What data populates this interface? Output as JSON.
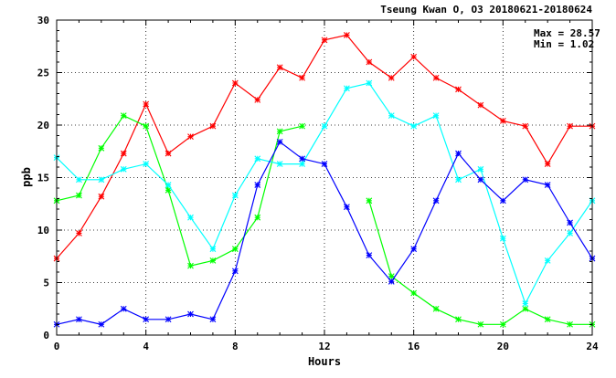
{
  "chart_data": {
    "type": "line",
    "title": "Tseung Kwan O, O3 20180621-20180624",
    "xlabel": "Hours",
    "ylabel": "ppb",
    "xlim": [
      0,
      24
    ],
    "ylim": [
      0,
      30
    ],
    "xticks": [
      0,
      4,
      8,
      12,
      16,
      20,
      24
    ],
    "yticks": [
      0,
      5,
      10,
      15,
      20,
      25,
      30
    ],
    "grid": true,
    "stats": {
      "max_label": "Max = 28.57",
      "min_label": "Min = 1.02"
    },
    "x": [
      0,
      1,
      2,
      3,
      4,
      5,
      6,
      7,
      8,
      9,
      10,
      11,
      12,
      13,
      14,
      15,
      16,
      17,
      18,
      19,
      20,
      21,
      22,
      23,
      24
    ],
    "series": [
      {
        "color": "#ff0000",
        "values": [
          7.3,
          9.7,
          13.2,
          17.3,
          22.0,
          17.3,
          18.9,
          19.9,
          24.0,
          22.4,
          25.5,
          24.5,
          28.1,
          28.57,
          26.0,
          24.5,
          26.5,
          24.5,
          23.4,
          21.9,
          20.4,
          19.9,
          16.3,
          19.9,
          19.9
        ]
      },
      {
        "color": "#00ff00",
        "values": [
          12.8,
          13.3,
          17.8,
          20.9,
          19.9,
          13.8,
          6.6,
          7.1,
          8.2,
          11.2,
          19.4,
          19.9,
          null,
          null,
          12.8,
          5.6,
          4.0,
          2.5,
          1.5,
          1.02,
          1.02,
          2.5,
          1.5,
          1.02,
          1.02
        ]
      },
      {
        "color": "#00ffff",
        "values": [
          16.9,
          14.8,
          14.8,
          15.8,
          16.3,
          14.3,
          11.2,
          8.2,
          13.3,
          16.8,
          16.3,
          16.3,
          19.9,
          23.5,
          24.0,
          20.9,
          19.9,
          20.9,
          14.8,
          15.8,
          9.2,
          3.0,
          7.1,
          9.7,
          12.8
        ]
      },
      {
        "color": "#0000ff",
        "values": [
          1.02,
          1.5,
          1.02,
          2.5,
          1.5,
          1.5,
          2.0,
          1.5,
          6.1,
          14.3,
          18.4,
          16.8,
          16.3,
          12.2,
          7.6,
          5.1,
          8.2,
          12.8,
          17.3,
          14.8,
          12.8,
          14.8,
          14.3,
          10.7,
          7.3
        ]
      }
    ]
  }
}
